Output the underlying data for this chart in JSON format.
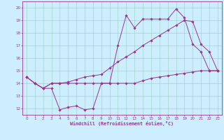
{
  "xlabel": "Windchill (Refroidissement éolien,°C)",
  "background_color": "#cceeff",
  "line_color": "#993399",
  "xlim": [
    -0.5,
    23.5
  ],
  "ylim": [
    11.5,
    20.5
  ],
  "xticks": [
    0,
    1,
    2,
    3,
    4,
    5,
    6,
    7,
    8,
    9,
    10,
    11,
    12,
    13,
    14,
    15,
    16,
    17,
    18,
    19,
    20,
    21,
    22,
    23
  ],
  "yticks": [
    12,
    13,
    14,
    15,
    16,
    17,
    18,
    19,
    20
  ],
  "grid_color": "#99ccbb",
  "line1_y": [
    14.5,
    14.0,
    13.6,
    13.6,
    11.9,
    12.1,
    12.2,
    11.9,
    12.0,
    14.0,
    14.0,
    17.0,
    19.4,
    18.4,
    19.1,
    19.1,
    19.1,
    19.1,
    19.9,
    19.2,
    17.1,
    16.5,
    15.0,
    15.0
  ],
  "line2_y": [
    14.5,
    14.0,
    13.6,
    14.0,
    14.0,
    14.0,
    14.0,
    14.0,
    14.0,
    14.0,
    14.0,
    14.0,
    14.0,
    14.0,
    14.2,
    14.4,
    14.5,
    14.6,
    14.7,
    14.8,
    14.9,
    15.0,
    15.0,
    15.0
  ],
  "line3_y": [
    14.5,
    14.0,
    13.6,
    14.0,
    14.0,
    14.1,
    14.3,
    14.5,
    14.6,
    14.7,
    15.2,
    15.7,
    16.1,
    16.5,
    17.0,
    17.4,
    17.8,
    18.2,
    18.6,
    19.0,
    18.9,
    17.1,
    16.5,
    15.0
  ]
}
